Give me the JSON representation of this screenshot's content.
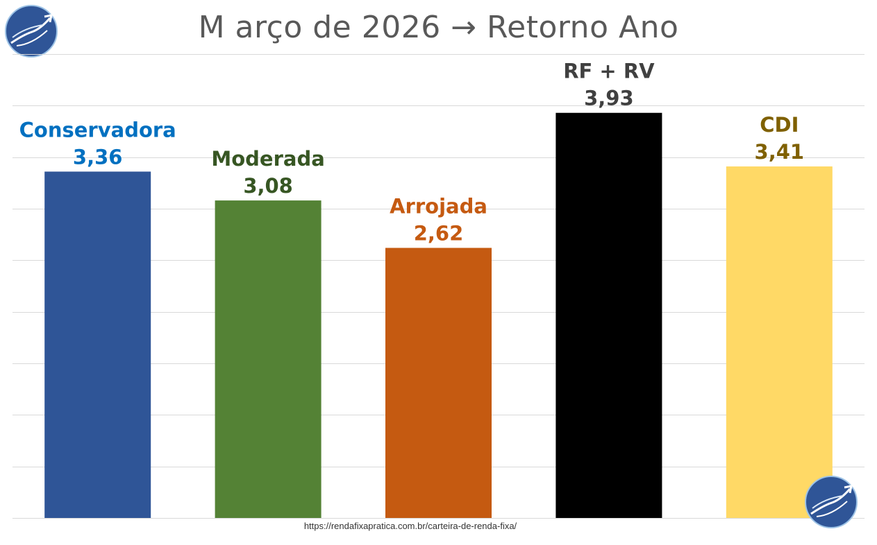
{
  "title": "M arço de 2026 → Retorno Ano",
  "source_url": "https://rendafixapratica.com.br/carteira-de-renda-fixa/",
  "logo_icon": "rising-arrow-logo-icon",
  "colors": {
    "title": "#595959",
    "gridline": "#d9d9d9",
    "logo_fill": "#2f5597"
  },
  "chart_data": {
    "type": "bar",
    "categories": [
      "Conservadora",
      "Moderada",
      "Arrojada",
      "RF + RV",
      "CDI"
    ],
    "values": [
      3.36,
      3.08,
      2.62,
      3.93,
      3.41
    ],
    "value_labels": [
      "3,36",
      "3,08",
      "2,62",
      "3,93",
      "3,41"
    ],
    "bar_colors": [
      "#2f5597",
      "#548235",
      "#c55a11",
      "#000000",
      "#ffd966"
    ],
    "label_colors": [
      "#0070c0",
      "#375623",
      "#c55a11",
      "#404040",
      "#7f6000"
    ],
    "ylim": [
      0,
      4.5
    ],
    "ytick_step": 0.5,
    "grid": true,
    "xlabel": "",
    "ylabel": ""
  }
}
